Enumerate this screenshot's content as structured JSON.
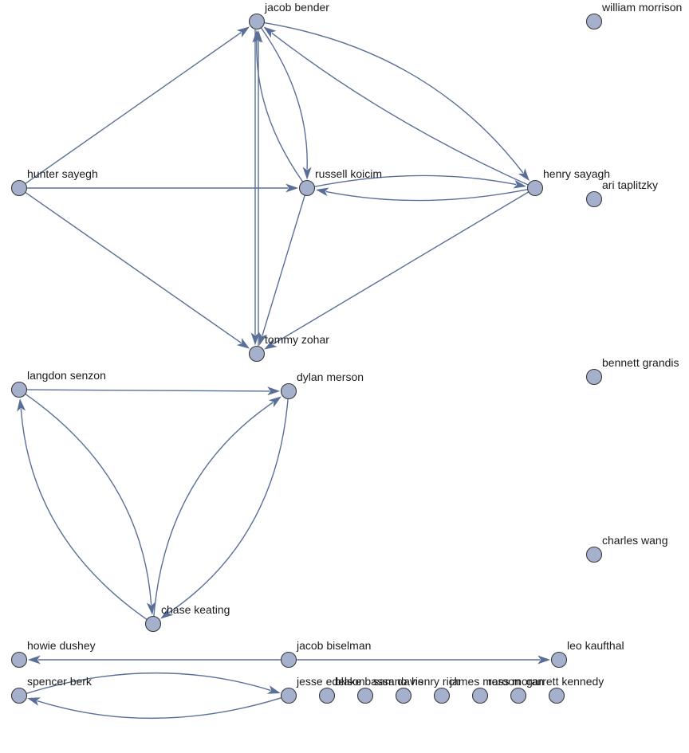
{
  "graph": {
    "nodes": [
      {
        "id": "jacob-bender",
        "label": "jacob bender"
      },
      {
        "id": "william-morrison",
        "label": "william morrison"
      },
      {
        "id": "hunter-sayegh",
        "label": "hunter sayegh"
      },
      {
        "id": "russell-koicim",
        "label": "russell koicim"
      },
      {
        "id": "henry-sayagh",
        "label": "henry sayagh"
      },
      {
        "id": "ari-taplitzky",
        "label": "ari taplitzky"
      },
      {
        "id": "tommy-zohar",
        "label": "tommy zohar"
      },
      {
        "id": "bennett-grandis",
        "label": "bennett grandis"
      },
      {
        "id": "langdon-senzon",
        "label": "langdon senzon"
      },
      {
        "id": "dylan-merson",
        "label": "dylan merson"
      },
      {
        "id": "charles-wang",
        "label": "charles wang"
      },
      {
        "id": "chase-keating",
        "label": "chase keating"
      },
      {
        "id": "howie-dushey",
        "label": "howie dushey"
      },
      {
        "id": "jacob-biselman",
        "label": "jacob biselman"
      },
      {
        "id": "leo-kaufthal",
        "label": "leo kaufthal"
      },
      {
        "id": "spencer-berk",
        "label": "spencer berk"
      },
      {
        "id": "jesse-edelson",
        "label": "jesse edelson"
      },
      {
        "id": "blake-bassano",
        "label": "blake bassano"
      },
      {
        "id": "sam-davis",
        "label": "sam davis"
      },
      {
        "id": "henry-rich",
        "label": "henry rich"
      },
      {
        "id": "james-maroon",
        "label": "james maroon"
      },
      {
        "id": "ross-moran",
        "label": "ross moran"
      },
      {
        "id": "garrett-kennedy",
        "label": "garrett kennedy"
      }
    ],
    "edges": [
      {
        "from": "hunter-sayegh",
        "to": "jacob-bender"
      },
      {
        "from": "hunter-sayegh",
        "to": "russell-koicim"
      },
      {
        "from": "hunter-sayegh",
        "to": "tommy-zohar"
      },
      {
        "from": "jacob-bender",
        "to": "russell-koicim"
      },
      {
        "from": "russell-koicim",
        "to": "jacob-bender"
      },
      {
        "from": "jacob-bender",
        "to": "henry-sayagh"
      },
      {
        "from": "henry-sayagh",
        "to": "jacob-bender"
      },
      {
        "from": "jacob-bender",
        "to": "tommy-zohar"
      },
      {
        "from": "tommy-zohar",
        "to": "jacob-bender"
      },
      {
        "from": "russell-koicim",
        "to": "henry-sayagh"
      },
      {
        "from": "henry-sayagh",
        "to": "russell-koicim"
      },
      {
        "from": "russell-koicim",
        "to": "tommy-zohar"
      },
      {
        "from": "henry-sayagh",
        "to": "tommy-zohar"
      },
      {
        "from": "langdon-senzon",
        "to": "dylan-merson"
      },
      {
        "from": "langdon-senzon",
        "to": "chase-keating"
      },
      {
        "from": "chase-keating",
        "to": "langdon-senzon"
      },
      {
        "from": "chase-keating",
        "to": "dylan-merson"
      },
      {
        "from": "dylan-merson",
        "to": "chase-keating"
      },
      {
        "from": "jacob-biselman",
        "to": "howie-dushey"
      },
      {
        "from": "jacob-biselman",
        "to": "leo-kaufthal"
      },
      {
        "from": "spencer-berk",
        "to": "jesse-edelson"
      },
      {
        "from": "jesse-edelson",
        "to": "spencer-berk"
      }
    ]
  }
}
